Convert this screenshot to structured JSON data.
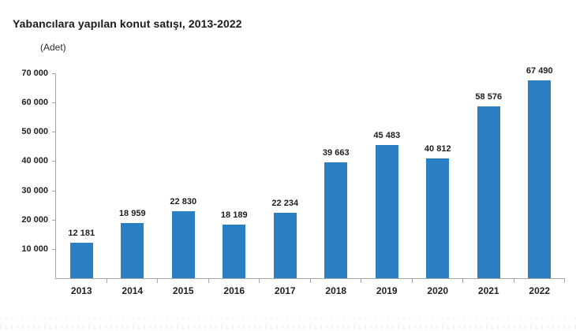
{
  "title": "Yabancılara yapılan konut satışı, 2013-2022",
  "subtitle": "(Adet)",
  "chart_data": {
    "type": "bar",
    "title": "Yabancılara yapılan konut satışı, 2013-2022",
    "unit_label": "(Adet)",
    "categories": [
      "2013",
      "2014",
      "2015",
      "2016",
      "2017",
      "2018",
      "2019",
      "2020",
      "2021",
      "2022"
    ],
    "values": [
      12181,
      18959,
      22830,
      18189,
      22234,
      39663,
      45483,
      40812,
      58576,
      67490
    ],
    "values_display": [
      "12 181",
      "18 959",
      "22 830",
      "18 189",
      "22 234",
      "39 663",
      "45 483",
      "40 812",
      "58 576",
      "67 490"
    ],
    "xlabel": "",
    "ylabel": "(Adet)",
    "ylim": [
      0,
      70000
    ],
    "yticks": [
      {
        "value": 10000,
        "label": "10 000"
      },
      {
        "value": 20000,
        "label": "20 000"
      },
      {
        "value": 30000,
        "label": "30 000"
      },
      {
        "value": 40000,
        "label": "40 000"
      },
      {
        "value": 50000,
        "label": "50 000"
      },
      {
        "value": 60000,
        "label": "60 000"
      },
      {
        "value": 70000,
        "label": "70 000"
      }
    ],
    "grid": false,
    "legend_position": "none",
    "bar_color": "#2b80c4",
    "axis_color": "#a6a6a6",
    "label_color": "#1d1d1d"
  }
}
